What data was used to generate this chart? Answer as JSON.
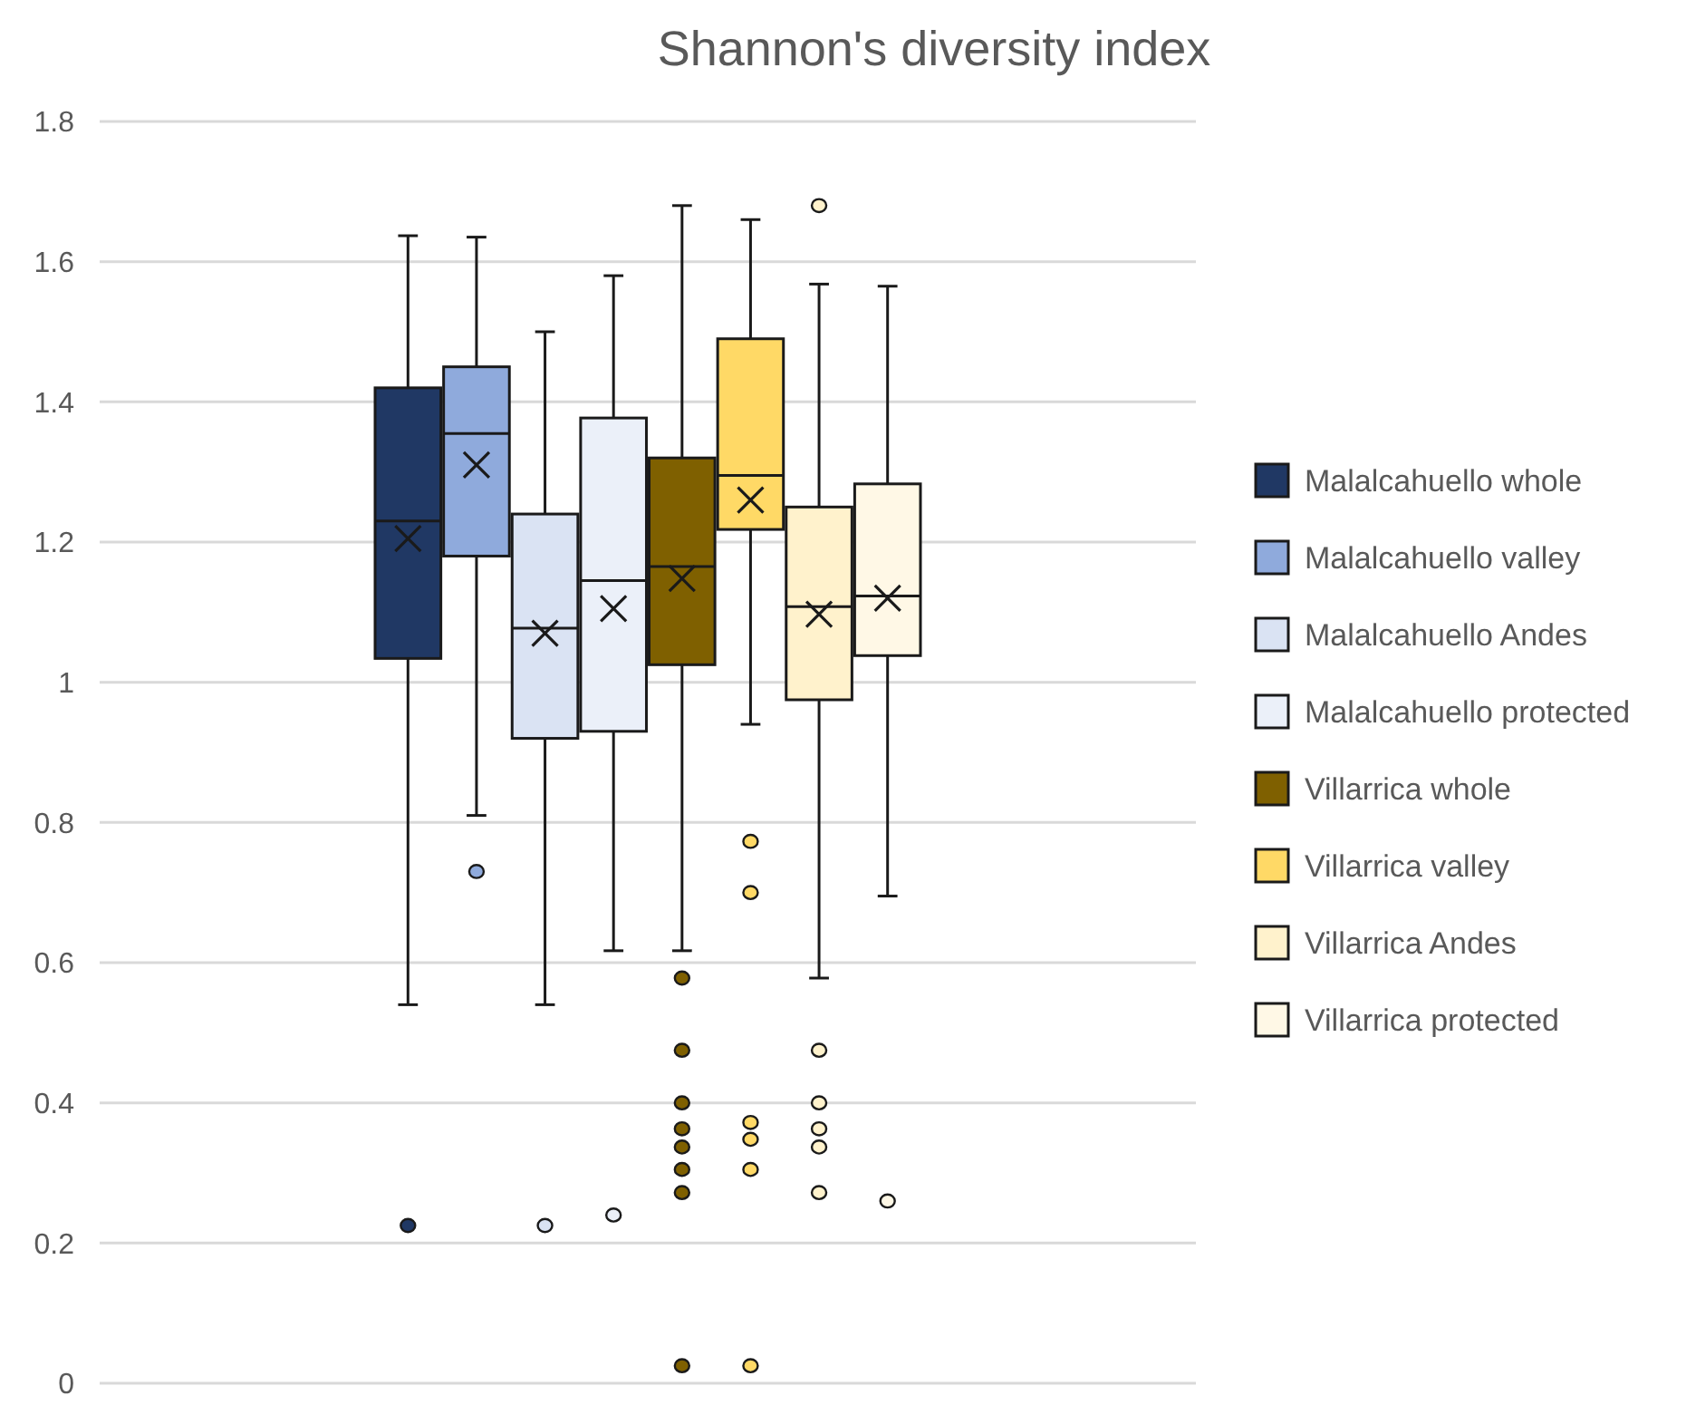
{
  "chart_data": {
    "type": "box",
    "title": "Shannon's diversity index",
    "categories": [
      null
    ],
    "ylim": [
      0,
      1.8
    ],
    "yticks": [
      0,
      0.2,
      0.4,
      0.6,
      0.8,
      1,
      1.2,
      1.4,
      1.6,
      1.8
    ],
    "grid": "y",
    "legend": "right",
    "tick_labels": "y",
    "series": [
      {
        "name": "Malalcahuello whole",
        "color": "#203864",
        "boxes": [
          {
            "low": 0.54,
            "q1": 1.034,
            "median": 1.23,
            "q3": 1.42,
            "high": 1.637,
            "mean": 1.205,
            "outliers": [
              0.225
            ]
          }
        ]
      },
      {
        "name": "Malalcahuello valley",
        "color": "#8faadc",
        "boxes": [
          {
            "low": 0.81,
            "q1": 1.18,
            "median": 1.355,
            "q3": 1.45,
            "high": 1.635,
            "mean": 1.31,
            "outliers": [
              0.73
            ]
          }
        ]
      },
      {
        "name": "Malalcahuello Andes",
        "color": "#dae3f3",
        "boxes": [
          {
            "low": 0.54,
            "q1": 0.92,
            "median": 1.077,
            "q3": 1.24,
            "high": 1.5,
            "mean": 1.07,
            "outliers": [
              0.225
            ]
          }
        ]
      },
      {
        "name": "Malalcahuello protected",
        "color": "#ebf0f9",
        "boxes": [
          {
            "low": 0.617,
            "q1": 0.93,
            "median": 1.145,
            "q3": 1.377,
            "high": 1.58,
            "mean": 1.105,
            "outliers": [
              0.24
            ]
          }
        ]
      },
      {
        "name": "Villarrica whole",
        "color": "#7f6000",
        "boxes": [
          {
            "low": 0.617,
            "q1": 1.025,
            "median": 1.165,
            "q3": 1.32,
            "high": 1.68,
            "mean": 1.148,
            "outliers": [
              0.578,
              0.475,
              0.4,
              0.363,
              0.337,
              0.305,
              0.272,
              0.025
            ]
          }
        ]
      },
      {
        "name": "Villarrica valley",
        "color": "#ffd966",
        "boxes": [
          {
            "low": 0.94,
            "q1": 1.218,
            "median": 1.295,
            "q3": 1.49,
            "high": 1.66,
            "mean": 1.26,
            "outliers": [
              0.773,
              0.7,
              0.372,
              0.348,
              0.305,
              0.025
            ]
          }
        ]
      },
      {
        "name": "Villarrica Andes",
        "color": "#fff2cc",
        "boxes": [
          {
            "low": 0.578,
            "q1": 0.975,
            "median": 1.108,
            "q3": 1.25,
            "high": 1.568,
            "mean": 1.097,
            "outliers": [
              1.68,
              0.475,
              0.4,
              0.363,
              0.337,
              0.272
            ]
          }
        ]
      },
      {
        "name": "Villarrica protected",
        "color": "#fff8e6",
        "boxes": [
          {
            "low": 0.695,
            "q1": 1.038,
            "median": 1.123,
            "q3": 1.283,
            "high": 1.565,
            "mean": 1.12,
            "outliers": [
              0.26
            ]
          }
        ]
      }
    ]
  }
}
